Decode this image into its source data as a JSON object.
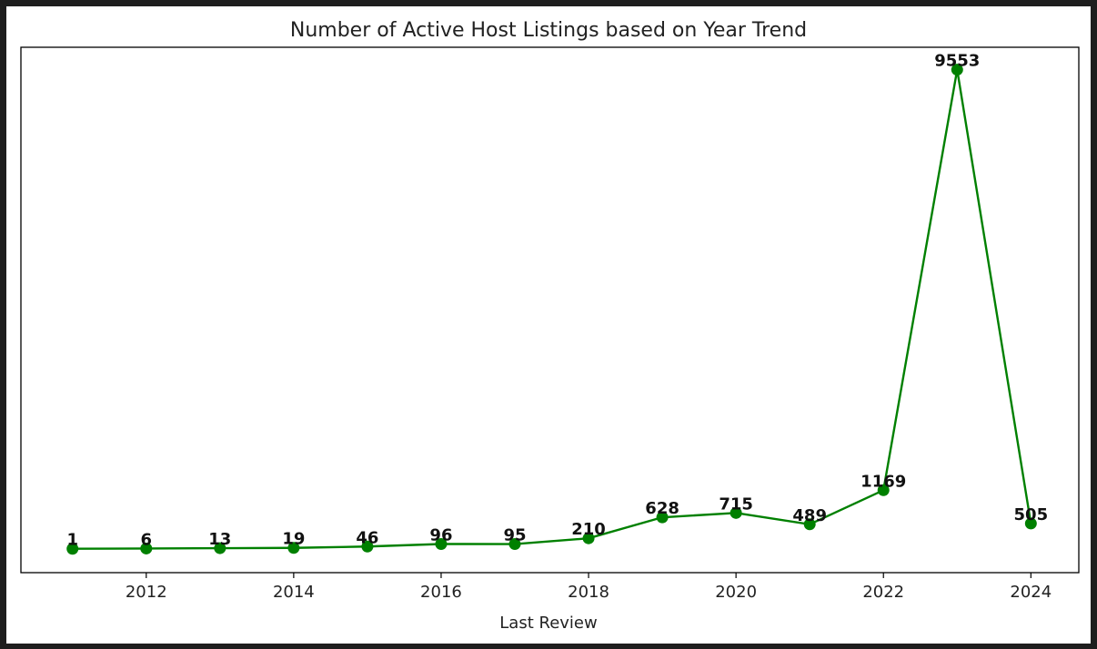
{
  "chart_data": {
    "type": "line",
    "title": "Number of Active Host Listings based on Year Trend",
    "xlabel": "Last Review",
    "ylabel": "",
    "x": [
      2011,
      2012,
      2013,
      2014,
      2015,
      2016,
      2017,
      2018,
      2019,
      2020,
      2021,
      2022,
      2023,
      2024
    ],
    "series": [
      {
        "values": [
          1,
          6,
          13,
          19,
          46,
          96,
          95,
          210,
          628,
          715,
          489,
          1169,
          9553,
          505
        ],
        "color": "#008000",
        "marker": "circle"
      }
    ],
    "data_labels": [
      "1",
      "6",
      "13",
      "19",
      "46",
      "96",
      "95",
      "210",
      "628",
      "715",
      "489",
      "1169",
      "9553",
      "505"
    ],
    "xticks": [
      2012,
      2014,
      2016,
      2018,
      2020,
      2022,
      2024
    ],
    "xtick_labels": [
      "2012",
      "2014",
      "2016",
      "2018",
      "2020",
      "2022",
      "2024"
    ],
    "xlim": [
      2010.3,
      2024.65
    ],
    "ylim": [
      -475,
      10000
    ],
    "yaxis_visible": false,
    "grid": false,
    "legend": "none"
  }
}
